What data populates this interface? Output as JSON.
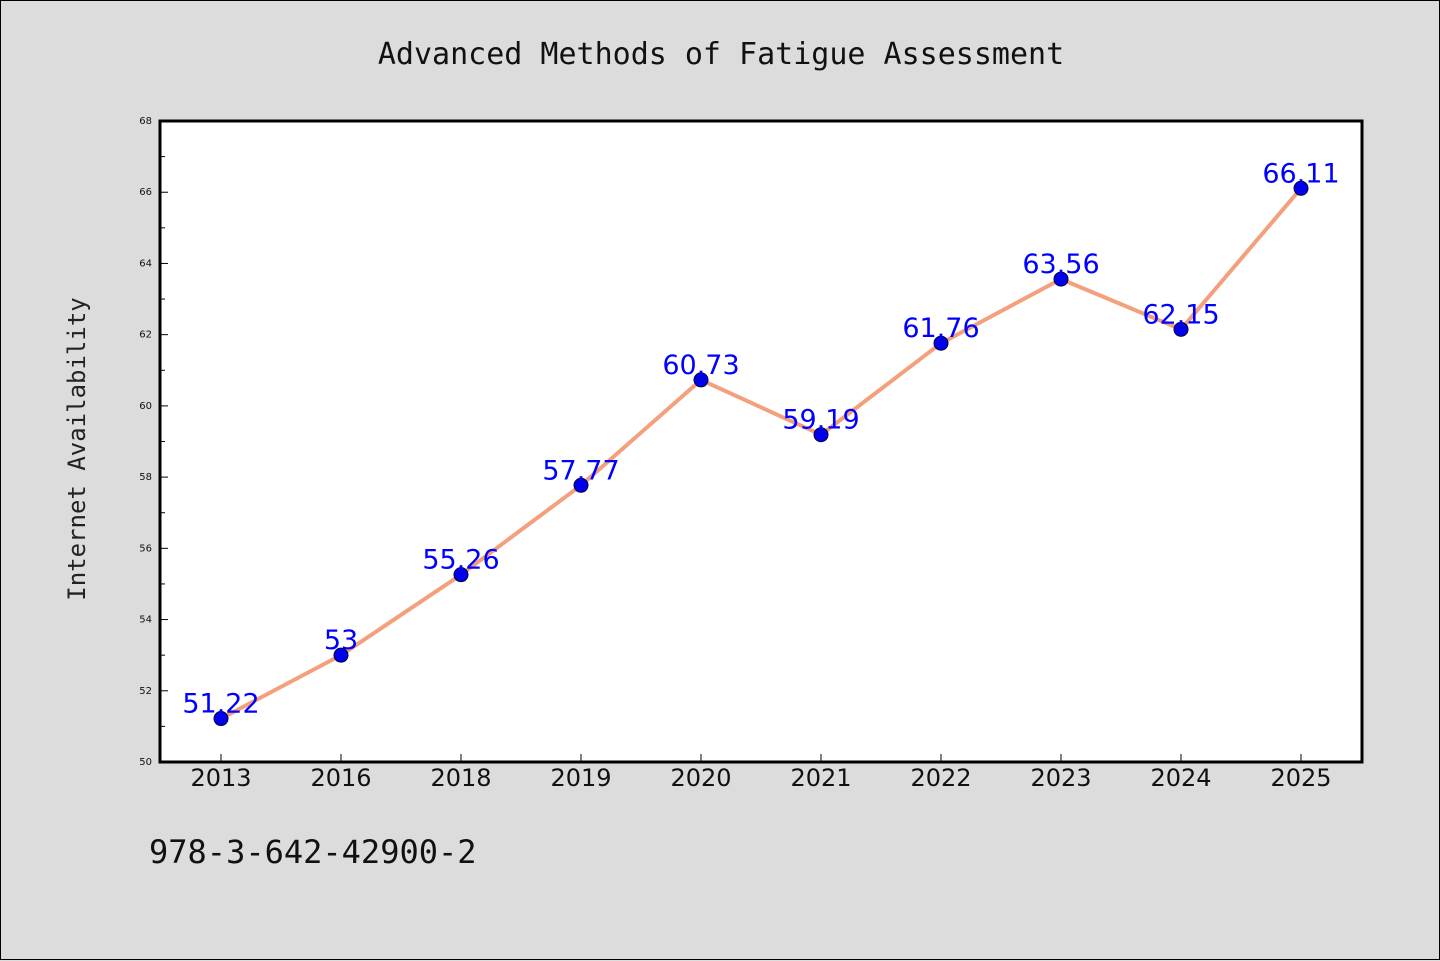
{
  "chart_data": {
    "type": "line",
    "title": "Advanced Methods of Fatigue Assessment",
    "xlabel": "",
    "ylabel": "Internet Availability",
    "categories": [
      "2013",
      "2016",
      "2018",
      "2019",
      "2020",
      "2021",
      "2022",
      "2023",
      "2024",
      "2025"
    ],
    "series": [
      {
        "values": [
          51.22,
          53,
          55.26,
          57.77,
          60.73,
          59.19,
          61.76,
          63.56,
          62.15,
          66.11
        ],
        "labels": [
          "51.22",
          "53",
          "55.26",
          "57.77",
          "60.73",
          "59.19",
          "61.76",
          "63.56",
          "62.15",
          "66.11"
        ]
      }
    ],
    "ylim": [
      50,
      68
    ],
    "yticks": [
      "50",
      "52",
      "54",
      "56",
      "58",
      "60",
      "62",
      "64",
      "66",
      "68"
    ],
    "grid": false,
    "line_color": "#f4a07c",
    "marker_color": "#0000ee",
    "label_color": "#0000ff"
  },
  "footer": {
    "code": "978-3-642-42900-2"
  }
}
